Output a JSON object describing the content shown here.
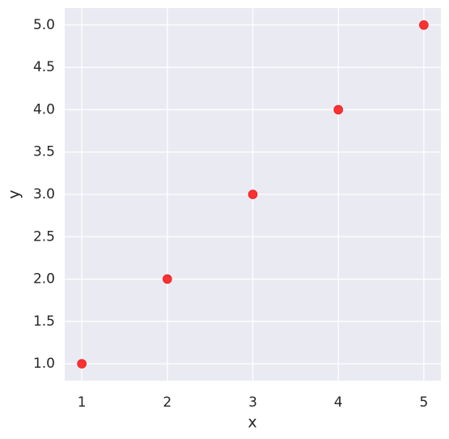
{
  "chart_data": {
    "type": "scatter",
    "x_label": "x",
    "y_label": "y",
    "x": [
      1,
      2,
      3,
      4,
      5
    ],
    "values": [
      1,
      2,
      3,
      4,
      5
    ],
    "color": "#ff0000",
    "xlim": [
      0.8,
      5.2
    ],
    "ylim": [
      0.8,
      5.2
    ],
    "xticks": [
      1,
      2,
      3,
      4,
      5
    ],
    "yticks": [
      {
        "value": 1,
        "label": "1.0"
      },
      {
        "value": 1.5,
        "label": "1.5"
      },
      {
        "value": 2,
        "label": "2.0"
      },
      {
        "value": 2.5,
        "label": "2.5"
      },
      {
        "value": 3,
        "label": "3.0"
      },
      {
        "value": 3.5,
        "label": "3.5"
      },
      {
        "value": 4,
        "label": "4.0"
      },
      {
        "value": 4.5,
        "label": "4.5"
      },
      {
        "value": 5,
        "label": "5.0"
      }
    ],
    "grid": true
  }
}
